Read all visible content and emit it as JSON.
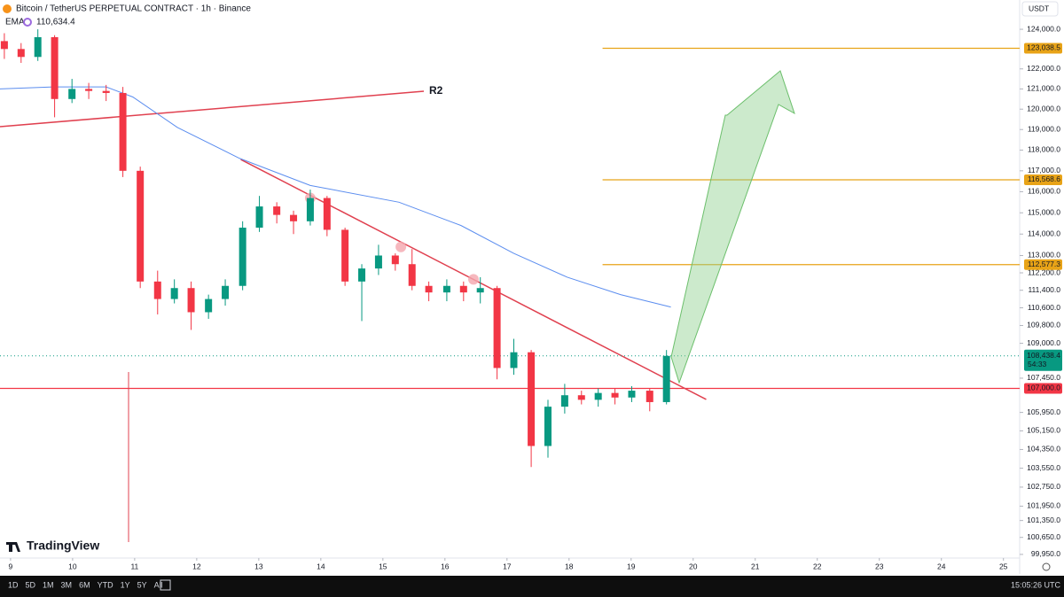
{
  "chart_data": {
    "type": "candlestick",
    "title": "Bitcoin / TetherUS PERPETUAL CONTRACT · 1h · Binance",
    "currency": "USDT",
    "log_scale": true,
    "grid": false,
    "up_color": "#089981",
    "down_color": "#f23645",
    "x": [
      8.9,
      9.17,
      9.44,
      9.71,
      9.99,
      10.26,
      10.54,
      10.81,
      11.09,
      11.37,
      11.64,
      11.91,
      12.19,
      12.46,
      12.74,
      13.01,
      13.29,
      13.56,
      13.83,
      14.1,
      14.39,
      14.66,
      14.93,
      15.2,
      15.47,
      15.74,
      16.03,
      16.3,
      16.57,
      16.84,
      17.11,
      17.39,
      17.66,
      17.93,
      18.2,
      18.47,
      18.74,
      19.01,
      19.3,
      19.57
    ],
    "open": [
      123400,
      123000,
      122600,
      123600,
      120500,
      121000,
      120900,
      120800,
      117000,
      111800,
      111000,
      111500,
      110400,
      111000,
      111600,
      114300,
      115300,
      114900,
      114600,
      115700,
      114200,
      111800,
      112400,
      113000,
      112600,
      111600,
      111300,
      111600,
      111300,
      111500,
      107900,
      108600,
      104500,
      106200,
      106700,
      106500,
      106800,
      106600,
      106900,
      106400
    ],
    "high": [
      123800,
      123300,
      124000,
      123700,
      121500,
      121300,
      121200,
      121100,
      117200,
      112300,
      111900,
      111800,
      111200,
      111900,
      114600,
      115800,
      115500,
      115100,
      116100,
      115800,
      114300,
      112600,
      113500,
      113100,
      113300,
      111800,
      111900,
      111800,
      112000,
      111600,
      109200,
      108700,
      106500,
      107200,
      106900,
      107000,
      107000,
      107100,
      107000,
      108700
    ],
    "low": [
      122500,
      122300,
      122400,
      119600,
      120300,
      120500,
      120400,
      116700,
      111500,
      110300,
      110800,
      109600,
      110100,
      110700,
      111400,
      114100,
      114500,
      114000,
      114400,
      113900,
      111600,
      110000,
      112100,
      112300,
      111400,
      110900,
      110900,
      110900,
      110800,
      107400,
      107600,
      103600,
      104000,
      105900,
      106300,
      106200,
      106300,
      106400,
      106000,
      106300
    ],
    "close": [
      123000,
      122600,
      123600,
      120500,
      121000,
      120900,
      120800,
      117000,
      111800,
      111000,
      111500,
      110400,
      111000,
      111600,
      114300,
      115300,
      114900,
      114600,
      115700,
      114200,
      111800,
      112400,
      113000,
      112600,
      111600,
      111300,
      111600,
      111300,
      111500,
      107900,
      108600,
      104500,
      106200,
      106700,
      106500,
      106800,
      106600,
      106900,
      106400,
      108438.4
    ],
    "ema": {
      "name": "EMA",
      "legend_label": "110,634.4",
      "color": "#5b8def",
      "x": [
        8.83,
        9.69,
        10.54,
        10.97,
        11.69,
        12.69,
        13.83,
        15.26,
        16.26,
        17.11,
        17.97,
        18.83,
        19.64
      ],
      "values": [
        121000,
        121100,
        121100,
        120600,
        119100,
        117600,
        116300,
        115500,
        114400,
        113100,
        112000,
        111200,
        110634.4
      ]
    },
    "price": {
      "value": 108438.4,
      "label": "108,438.4",
      "countdown": "54:33",
      "color": "#089981"
    },
    "levels": [
      {
        "value": 123038.5,
        "label": "123,038.5",
        "color": "#e8a317",
        "from_x": 18.54
      },
      {
        "value": 116568.6,
        "label": "116,568.6",
        "color": "#e8a317",
        "from_x": 18.54
      },
      {
        "value": 112577.3,
        "label": "112,577.3",
        "color": "#e8a317",
        "from_x": 18.54
      },
      {
        "value": 107000.0,
        "label": "107,000.0",
        "color": "#f23645",
        "from_x": 8.83
      }
    ],
    "trendlines": [
      {
        "name": "R2",
        "x": [
          8.83,
          15.66
        ],
        "y": [
          119139,
          120884
        ],
        "color": "#e0404f"
      },
      {
        "x": [
          12.71,
          20.21
        ],
        "y": [
          117546,
          106516
        ],
        "color": "#e0404f"
      }
    ],
    "touches": {
      "x": [
        13.83,
        15.29,
        16.46
      ],
      "y": [
        115700,
        113400,
        111900
      ],
      "color": "#f4a6ae"
    },
    "xlim": [
      8.83,
      25.19
    ],
    "ylim": [
      99150,
      125500
    ],
    "xticks": [
      9,
      10,
      11,
      12,
      13,
      14,
      15,
      16,
      17,
      18,
      19,
      20,
      21,
      22,
      23,
      24,
      25
    ],
    "yticks": [
      {
        "value": 124000,
        "label": "124,000.0"
      },
      {
        "value": 122000,
        "label": "122,000.0"
      },
      {
        "value": 121000,
        "label": "121,000.0"
      },
      {
        "value": 120000,
        "label": "120,000.0"
      },
      {
        "value": 119000,
        "label": "119,000.0"
      },
      {
        "value": 118000,
        "label": "118,000.0"
      },
      {
        "value": 117000,
        "label": "117,000.0"
      },
      {
        "value": 116000,
        "label": "116,000.0"
      },
      {
        "value": 115000,
        "label": "115,000.0"
      },
      {
        "value": 114000,
        "label": "114,000.0"
      },
      {
        "value": 113000,
        "label": "113,000.0"
      },
      {
        "value": 112200,
        "label": "112,200.0"
      },
      {
        "value": 111400,
        "label": "111,400.0"
      },
      {
        "value": 110600,
        "label": "110,600.0"
      },
      {
        "value": 109800,
        "label": "109,800.0"
      },
      {
        "value": 109000,
        "label": "109,000.0"
      },
      {
        "value": 107450,
        "label": "107,450.0"
      },
      {
        "value": 105950,
        "label": "105,950.0"
      },
      {
        "value": 105150,
        "label": "105,150.0"
      },
      {
        "value": 104350,
        "label": "104,350.0"
      },
      {
        "value": 103550,
        "label": "103,550.0"
      },
      {
        "value": 102750,
        "label": "102,750.0"
      },
      {
        "value": 101950,
        "label": "101,950.0"
      },
      {
        "value": 101350,
        "label": "101,350.0"
      },
      {
        "value": 100650,
        "label": "100,650.0"
      },
      {
        "value": 99950,
        "label": "99,950.0"
      }
    ]
  },
  "branding": "TradingView",
  "toolbar": {
    "ranges": [
      "1D",
      "5D",
      "1M",
      "3M",
      "6M",
      "YTD",
      "1Y",
      "5Y",
      "All"
    ],
    "clock": "15:05:26 UTC"
  }
}
